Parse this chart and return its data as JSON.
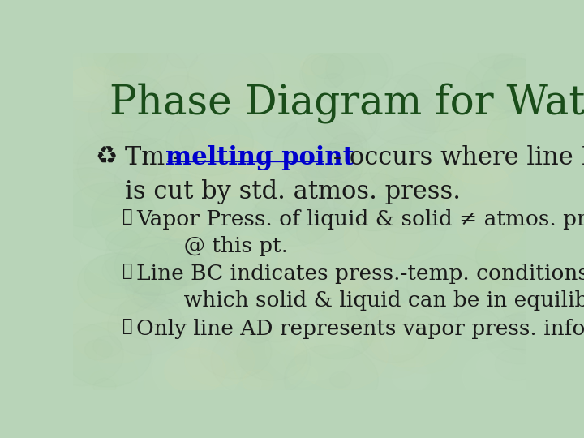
{
  "title": "Phase Diagram for Water",
  "title_color": "#1a4d1a",
  "title_fontsize": 36,
  "background_color": "#b8d4b8",
  "main_text_color": "#1a1a1a",
  "main_underline_color": "#0000cc",
  "main_fontsize": 22,
  "sub_bullets": [
    "Vapor Press. of liquid & solid ≠ atmos. press\n       @ this pt.",
    "Line BC indicates press.-temp. conditions under\n       which solid & liquid can be in equilib.",
    "Only line AD represents vapor press. info."
  ],
  "sub_text_color": "#1a1a1a",
  "sub_fontsize": 19
}
